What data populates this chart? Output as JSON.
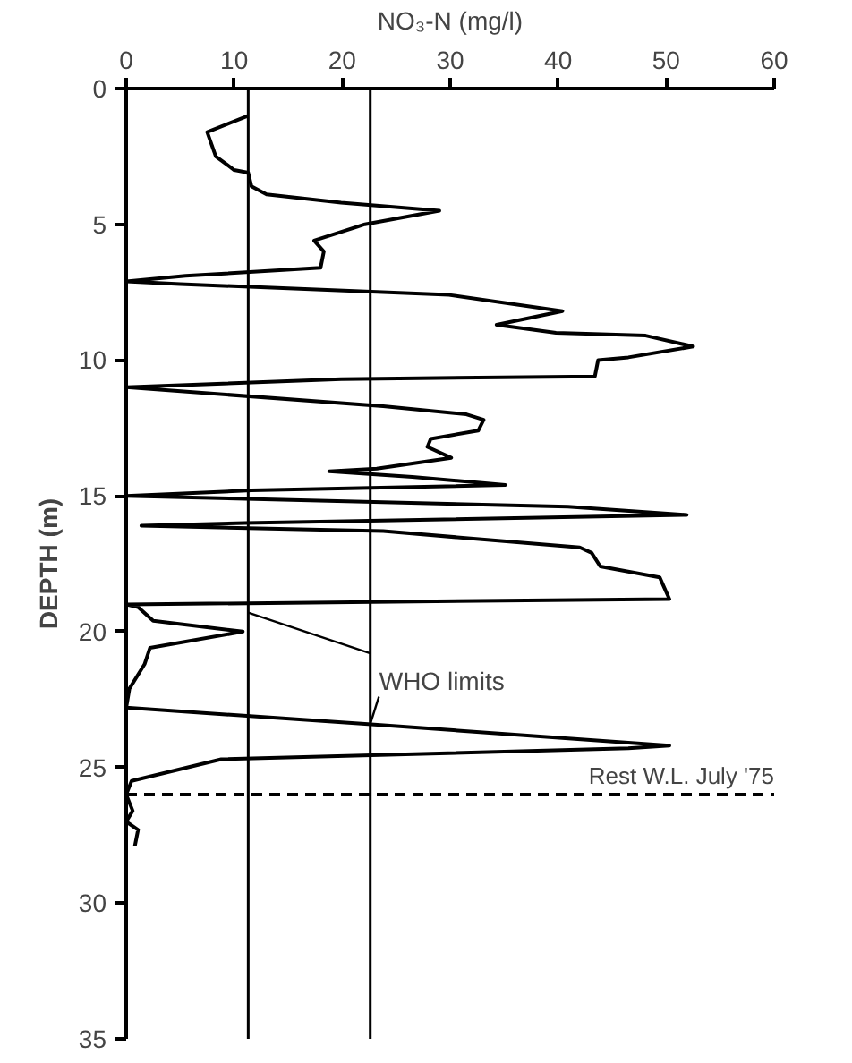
{
  "chart_data": {
    "type": "line",
    "xlabel": "NO₃-N (mg/l)",
    "ylabel": "DEPTH (m)",
    "series": [
      {
        "color": "#000000",
        "x": [
          11.3,
          7.5,
          8.3,
          10.0,
          11.3,
          11.6,
          13.0,
          19.9,
          29.0,
          22.1,
          17.4,
          18.3,
          18.0,
          5.5,
          0,
          5.0,
          29.9,
          40.4,
          34.3,
          39.8,
          48.1,
          52.5,
          46.5,
          43.7,
          43.4,
          19.9,
          0,
          23.8,
          31.5,
          33.1,
          32.6,
          28.2,
          27.9,
          30.1,
          23.2,
          18.8,
          26.5,
          35.1,
          11.6,
          0,
          40.9,
          51.9,
          11.0,
          1.4,
          23.8,
          42.0,
          43.1,
          43.9,
          49.4,
          50.3,
          0,
          1.1,
          2.5,
          10.8,
          2.2,
          1.7,
          0.3,
          0,
          22.1,
          50.3,
          46.5,
          8.8,
          0.5,
          0,
          0.6,
          0,
          1.1,
          0.8
        ],
        "values": [
          1.0,
          1.6,
          2.5,
          3.0,
          3.1,
          3.6,
          3.9,
          4.2,
          4.5,
          5.0,
          5.6,
          6.0,
          6.6,
          6.9,
          7.1,
          7.2,
          7.6,
          8.2,
          8.7,
          9.0,
          9.1,
          9.5,
          9.9,
          10.0,
          10.6,
          10.7,
          11.0,
          11.7,
          12.0,
          12.2,
          12.6,
          12.9,
          13.2,
          13.6,
          14.0,
          14.1,
          14.3,
          14.6,
          14.8,
          15.0,
          15.4,
          15.7,
          16.0,
          16.1,
          16.3,
          16.9,
          17.1,
          17.6,
          18.0,
          18.8,
          19.0,
          19.1,
          19.6,
          20.0,
          20.6,
          21.2,
          22.1,
          22.8,
          23.4,
          24.2,
          24.3,
          24.7,
          25.5,
          26.0,
          26.6,
          27.0,
          27.3,
          27.9
        ]
      }
    ],
    "xlim": [
      0,
      60
    ],
    "xticks": [
      0,
      10,
      20,
      30,
      40,
      50,
      60
    ],
    "ylim": [
      35,
      0
    ],
    "yticks": [
      0,
      5,
      10,
      15,
      20,
      25,
      30,
      35
    ],
    "ref_lines": [
      {
        "axis": "x",
        "value": 11.3,
        "label": null
      },
      {
        "axis": "x",
        "value": 22.6,
        "label": null
      },
      {
        "axis": "y",
        "value": 26,
        "label": "Rest W.L. July '75",
        "line_style": "dashed"
      }
    ],
    "annotations": [
      {
        "text": "WHO limits",
        "x": 22.6,
        "y": 23.4
      }
    ],
    "grid": false,
    "marker": "none",
    "line_style": "solid"
  }
}
